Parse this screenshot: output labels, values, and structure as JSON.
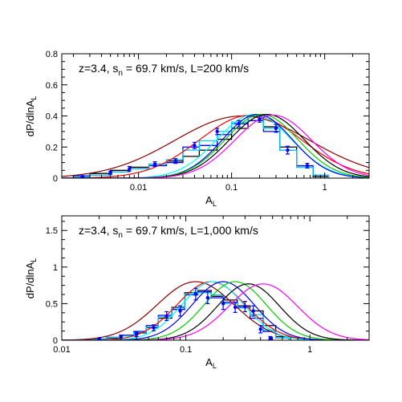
{
  "chart_data": [
    {
      "type": "line",
      "annotation": {
        "prefix": "z=3.4, s",
        "sub": "n",
        "suffix": " = 69.7 km/s, L=200 km/s"
      },
      "xlabel": {
        "main": "A",
        "sub": "L"
      },
      "ylabel": {
        "main": "dP/dlnA",
        "sub": "L"
      },
      "xscale": "log",
      "xlim": [
        0.0015,
        3.0
      ],
      "ylim": [
        0,
        0.8
      ],
      "yticks": [
        0,
        0.2,
        0.4,
        0.6,
        0.8
      ],
      "ytick_labels": [
        "0",
        "0.2",
        "0.4",
        "0.6",
        "0.8"
      ],
      "xticks": [
        0.01,
        0.1,
        1
      ],
      "xtick_labels": [
        "0.01",
        "0.1",
        "1"
      ],
      "curves": [
        {
          "color": "#8b0000",
          "peak_x": 0.13,
          "peak_y": 0.4,
          "width": 1.45
        },
        {
          "color": "#ff0000",
          "peak_x": 0.16,
          "peak_y": 0.405,
          "width": 1.1
        },
        {
          "color": "#00ffff",
          "peak_x": 0.175,
          "peak_y": 0.41,
          "width": 0.8
        },
        {
          "color": "#0000ff",
          "peak_x": 0.19,
          "peak_y": 0.41,
          "width": 0.75
        },
        {
          "color": "#00cc00",
          "peak_x": 0.21,
          "peak_y": 0.41,
          "width": 0.78
        },
        {
          "color": "#000000",
          "peak_x": 0.24,
          "peak_y": 0.41,
          "width": 0.8
        },
        {
          "color": "#ff00ff",
          "peak_x": 0.28,
          "peak_y": 0.405,
          "width": 0.82
        }
      ],
      "histograms": [
        {
          "color": "#000000",
          "edges": [
            0.002,
            0.003,
            0.005,
            0.008,
            0.013,
            0.02,
            0.03,
            0.045,
            0.07,
            0.1,
            0.15,
            0.22,
            0.33,
            0.5,
            0.75,
            1.1
          ],
          "values": [
            0.01,
            0.03,
            0.05,
            0.07,
            0.09,
            0.11,
            0.14,
            0.18,
            0.25,
            0.32,
            0.4,
            0.33,
            0.2,
            0.07,
            0.01
          ]
        },
        {
          "color": "#0000ff",
          "edges": [
            0.002,
            0.003,
            0.005,
            0.008,
            0.013,
            0.02,
            0.03,
            0.045,
            0.07,
            0.1,
            0.15,
            0.22,
            0.33,
            0.5,
            0.75,
            1.1
          ],
          "values": [
            0.015,
            0.02,
            0.04,
            0.06,
            0.08,
            0.1,
            0.2,
            0.21,
            0.28,
            0.35,
            0.37,
            0.3,
            0.18,
            0.08,
            0.02
          ]
        },
        {
          "color": "#00ccff",
          "edges": [
            0.002,
            0.003,
            0.005,
            0.008,
            0.013,
            0.02,
            0.03,
            0.045,
            0.07,
            0.1,
            0.15,
            0.22,
            0.33,
            0.5,
            0.75,
            1.1
          ],
          "values": [
            0.01,
            0.02,
            0.04,
            0.06,
            0.09,
            0.12,
            0.18,
            0.24,
            0.3,
            0.36,
            0.4,
            0.32,
            0.18,
            0.07,
            0.02
          ]
        }
      ],
      "points": {
        "color": "#0000ff",
        "x": [
          0.0025,
          0.005,
          0.008,
          0.015,
          0.025,
          0.04,
          0.07,
          0.12,
          0.2,
          0.3,
          0.4,
          0.65
        ],
        "y": [
          0.01,
          0.035,
          0.06,
          0.09,
          0.11,
          0.21,
          0.3,
          0.35,
          0.38,
          0.32,
          0.18,
          0.08
        ],
        "err": [
          0.005,
          0.01,
          0.015,
          0.015,
          0.015,
          0.02,
          0.02,
          0.02,
          0.02,
          0.025,
          0.025,
          0.015
        ]
      }
    },
    {
      "type": "line",
      "annotation": {
        "prefix": "z=3.4, s",
        "sub": "n",
        "suffix": " = 69.7 km/s, L=1,000 km/s"
      },
      "xlabel": {
        "main": "A",
        "sub": "L"
      },
      "ylabel": {
        "main": "dP/dlnA",
        "sub": "L"
      },
      "xscale": "log",
      "xlim": [
        0.01,
        3.0
      ],
      "ylim": [
        0,
        1.7
      ],
      "yticks": [
        0,
        0.5,
        1,
        1.5
      ],
      "ytick_labels": [
        "0",
        "0.5",
        "1",
        "1.5"
      ],
      "xticks": [
        0.01,
        0.1,
        1
      ],
      "xtick_labels": [
        "0.01",
        "0.1",
        "1"
      ],
      "curves": [
        {
          "color": "#8b0000",
          "peak_x": 0.12,
          "peak_y": 0.8,
          "width": 0.62
        },
        {
          "color": "#ff0000",
          "peak_x": 0.16,
          "peak_y": 0.8,
          "width": 0.55
        },
        {
          "color": "#00ffff",
          "peak_x": 0.165,
          "peak_y": 0.8,
          "width": 0.5
        },
        {
          "color": "#0000ff",
          "peak_x": 0.2,
          "peak_y": 0.8,
          "width": 0.5
        },
        {
          "color": "#00cc00",
          "peak_x": 0.25,
          "peak_y": 0.8,
          "width": 0.5
        },
        {
          "color": "#000000",
          "peak_x": 0.32,
          "peak_y": 0.77,
          "width": 0.5
        },
        {
          "color": "#ff00ff",
          "peak_x": 0.42,
          "peak_y": 0.77,
          "width": 0.55
        }
      ],
      "histograms": [
        {
          "color": "#000000",
          "edges": [
            0.014,
            0.018,
            0.023,
            0.03,
            0.038,
            0.048,
            0.06,
            0.077,
            0.098,
            0.125,
            0.16,
            0.2,
            0.26,
            0.33,
            0.42,
            0.53,
            0.68
          ],
          "values": [
            0.01,
            0.02,
            0.03,
            0.06,
            0.1,
            0.17,
            0.3,
            0.45,
            0.65,
            0.68,
            0.6,
            0.55,
            0.47,
            0.4,
            0.2,
            0.05
          ]
        },
        {
          "color": "#0000ff",
          "edges": [
            0.014,
            0.018,
            0.023,
            0.03,
            0.038,
            0.048,
            0.06,
            0.077,
            0.098,
            0.125,
            0.16,
            0.2,
            0.26,
            0.33,
            0.42,
            0.53,
            0.68
          ],
          "values": [
            0.01,
            0.02,
            0.04,
            0.07,
            0.12,
            0.2,
            0.34,
            0.42,
            0.62,
            0.66,
            0.58,
            0.52,
            0.45,
            0.3,
            0.12,
            0.03
          ]
        },
        {
          "color": "#00ccff",
          "edges": [
            0.014,
            0.018,
            0.023,
            0.03,
            0.038,
            0.048,
            0.06,
            0.077,
            0.098,
            0.125,
            0.16,
            0.2,
            0.26,
            0.33,
            0.42,
            0.53,
            0.68
          ],
          "values": [
            0.01,
            0.02,
            0.04,
            0.06,
            0.11,
            0.18,
            0.32,
            0.44,
            0.63,
            0.65,
            0.62,
            0.5,
            0.44,
            0.35,
            0.14,
            0.03
          ]
        }
      ],
      "points": {
        "color": "#0000ff",
        "x": [
          0.02,
          0.03,
          0.04,
          0.055,
          0.07,
          0.09,
          0.12,
          0.15,
          0.2,
          0.25,
          0.3,
          0.35,
          0.4,
          0.48
        ],
        "y": [
          0.02,
          0.05,
          0.08,
          0.17,
          0.33,
          0.4,
          0.63,
          0.58,
          0.5,
          0.45,
          0.46,
          0.4,
          0.15,
          0.03
        ],
        "err": [
          0.01,
          0.02,
          0.03,
          0.04,
          0.06,
          0.07,
          0.08,
          0.08,
          0.08,
          0.07,
          0.07,
          0.07,
          0.05,
          0.02
        ]
      }
    }
  ]
}
